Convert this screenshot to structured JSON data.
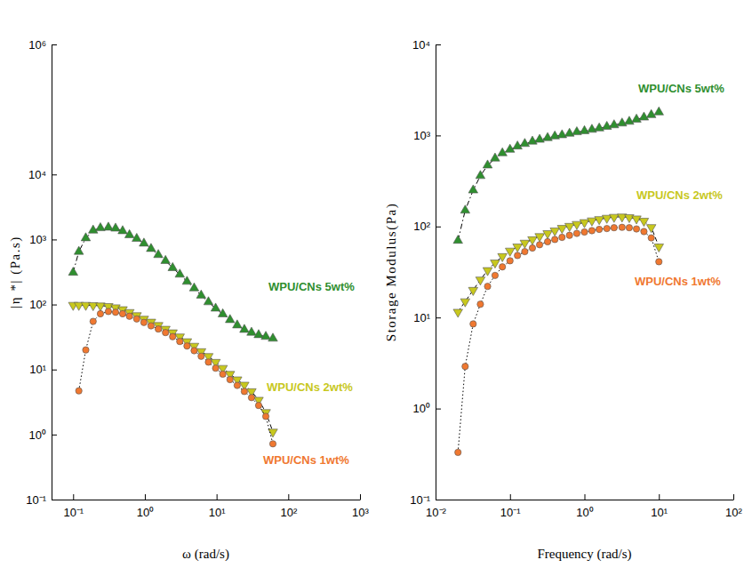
{
  "chart_data": [
    {
      "type": "line",
      "log": true,
      "x_label": "ω (rad/s)",
      "y_label": "|η *| (Pa.s)",
      "xlim": [
        0.05,
        1000
      ],
      "ylim": [
        0.1,
        1000000
      ],
      "xticks": [
        {
          "value": 0.1,
          "label": "10⁻¹"
        },
        {
          "value": 1,
          "label": "10⁰"
        },
        {
          "value": 10,
          "label": "10¹"
        },
        {
          "value": 100,
          "label": "10²"
        },
        {
          "value": 1000,
          "label": "10³"
        }
      ],
      "yticks": [
        {
          "value": 0.1,
          "label": "10⁻¹"
        },
        {
          "value": 1,
          "label": "10⁰"
        },
        {
          "value": 10,
          "label": "10¹"
        },
        {
          "value": 100,
          "label": "10²"
        },
        {
          "value": 1000,
          "label": "10³"
        },
        {
          "value": 10000,
          "label": "10⁴"
        },
        {
          "value": 1000000,
          "label": "10⁶"
        }
      ],
      "series": [
        {
          "name": "WPU/CNs 5wt%",
          "color": "#2f8f2f",
          "marker": "triangle-up",
          "line_style": "dashdot",
          "x": [
            0.1,
            0.12,
            0.15,
            0.19,
            0.24,
            0.31,
            0.39,
            0.49,
            0.61,
            0.77,
            0.97,
            1.22,
            1.54,
            1.94,
            2.44,
            3.07,
            3.87,
            4.87,
            6.1,
            7.7,
            9.7,
            12.2,
            15.4,
            19.4,
            24.4,
            30.7,
            38.6,
            48.6,
            61
          ],
          "values": [
            310,
            650,
            1050,
            1380,
            1500,
            1530,
            1480,
            1350,
            1170,
            1030,
            870,
            720,
            580,
            470,
            365,
            290,
            225,
            178,
            138,
            109,
            87,
            71,
            58,
            48,
            41,
            37,
            34,
            32,
            30
          ]
        },
        {
          "name": "WPU/CNs 2wt%",
          "color": "#c8c81e",
          "marker": "triangle-down",
          "line_style": "dashed",
          "x": [
            0.1,
            0.12,
            0.15,
            0.19,
            0.24,
            0.31,
            0.39,
            0.49,
            0.61,
            0.77,
            0.97,
            1.22,
            1.54,
            1.94,
            2.44,
            3.07,
            3.87,
            4.87,
            6.1,
            7.7,
            9.7,
            12.2,
            15.4,
            19.4,
            24.4,
            30.7,
            38.6,
            48.6,
            61
          ],
          "values": [
            98,
            98,
            98,
            97,
            96,
            94,
            90,
            84,
            76,
            68,
            60,
            54,
            48,
            42,
            37,
            32,
            27,
            23,
            19,
            16,
            13,
            10.5,
            8.5,
            7,
            5.8,
            4.6,
            3.4,
            2.2,
            1.1
          ]
        },
        {
          "name": "WPU/CNs 1wt%",
          "color": "#f07830",
          "marker": "circle",
          "line_style": "dotted",
          "x": [
            0.12,
            0.15,
            0.19,
            0.24,
            0.31,
            0.39,
            0.49,
            0.61,
            0.77,
            0.97,
            1.22,
            1.54,
            1.94,
            2.44,
            3.07,
            3.87,
            4.87,
            6.1,
            7.7,
            9.7,
            12.2,
            15.4,
            19.4,
            24.4,
            30.7,
            38.6,
            48.6,
            61
          ],
          "values": [
            4.7,
            20,
            55,
            72,
            78,
            76,
            72,
            66,
            60,
            53,
            47,
            42,
            37,
            32,
            27,
            23,
            19.5,
            16,
            13,
            10.5,
            8.5,
            7,
            5.7,
            4.6,
            3.7,
            2.8,
            1.9,
            0.72
          ]
        }
      ]
    },
    {
      "type": "line",
      "log": true,
      "x_label": "Frequency (rad/s)",
      "y_label": "Storage Modulus(Pa)",
      "xlim": [
        0.01,
        100
      ],
      "ylim": [
        0.1,
        10000
      ],
      "xticks": [
        {
          "value": 0.01,
          "label": "10⁻²"
        },
        {
          "value": 0.1,
          "label": "10⁻¹"
        },
        {
          "value": 1,
          "label": "10⁰"
        },
        {
          "value": 10,
          "label": "10¹"
        },
        {
          "value": 100,
          "label": "10²"
        }
      ],
      "yticks": [
        {
          "value": 0.1,
          "label": "10⁻¹"
        },
        {
          "value": 1,
          "label": "10⁰"
        },
        {
          "value": 10,
          "label": "10¹"
        },
        {
          "value": 100,
          "label": "10²"
        },
        {
          "value": 1000,
          "label": "10³"
        },
        {
          "value": 10000,
          "label": "10⁴"
        }
      ],
      "x": [
        0.02,
        0.025,
        0.032,
        0.04,
        0.05,
        0.063,
        0.079,
        0.1,
        0.126,
        0.158,
        0.2,
        0.25,
        0.32,
        0.4,
        0.5,
        0.63,
        0.79,
        1,
        1.26,
        1.58,
        2,
        2.5,
        3.2,
        4,
        5,
        6.3,
        7.9,
        10
      ],
      "series": [
        {
          "name": "WPU/CNs 5wt%",
          "color": "#2f8f2f",
          "marker": "triangle-up",
          "line_style": "dashdot",
          "values": [
            70,
            150,
            250,
            360,
            470,
            560,
            640,
            700,
            760,
            810,
            860,
            900,
            940,
            980,
            1010,
            1050,
            1090,
            1120,
            1160,
            1200,
            1250,
            1300,
            1360,
            1420,
            1500,
            1580,
            1680,
            1800
          ]
        },
        {
          "name": "WPU/CNs 2wt%",
          "color": "#c8c81e",
          "marker": "triangle-down",
          "line_style": "dashed",
          "values": [
            11.5,
            15,
            20,
            26,
            33,
            40,
            47,
            54,
            60,
            66,
            72,
            78,
            84,
            90,
            96,
            101,
            106,
            111,
            116,
            120,
            124,
            127,
            128,
            126,
            122,
            115,
            98,
            60
          ]
        },
        {
          "name": "WPU/CNs 1wt%",
          "color": "#f07830",
          "marker": "circle",
          "line_style": "dotted",
          "values": [
            0.33,
            2.9,
            8.5,
            14,
            22,
            29,
            36,
            42,
            48,
            53,
            58,
            63,
            68,
            72,
            76,
            80,
            84,
            87,
            90,
            93,
            95,
            97,
            98,
            97,
            94,
            88,
            75,
            41
          ]
        }
      ]
    }
  ]
}
